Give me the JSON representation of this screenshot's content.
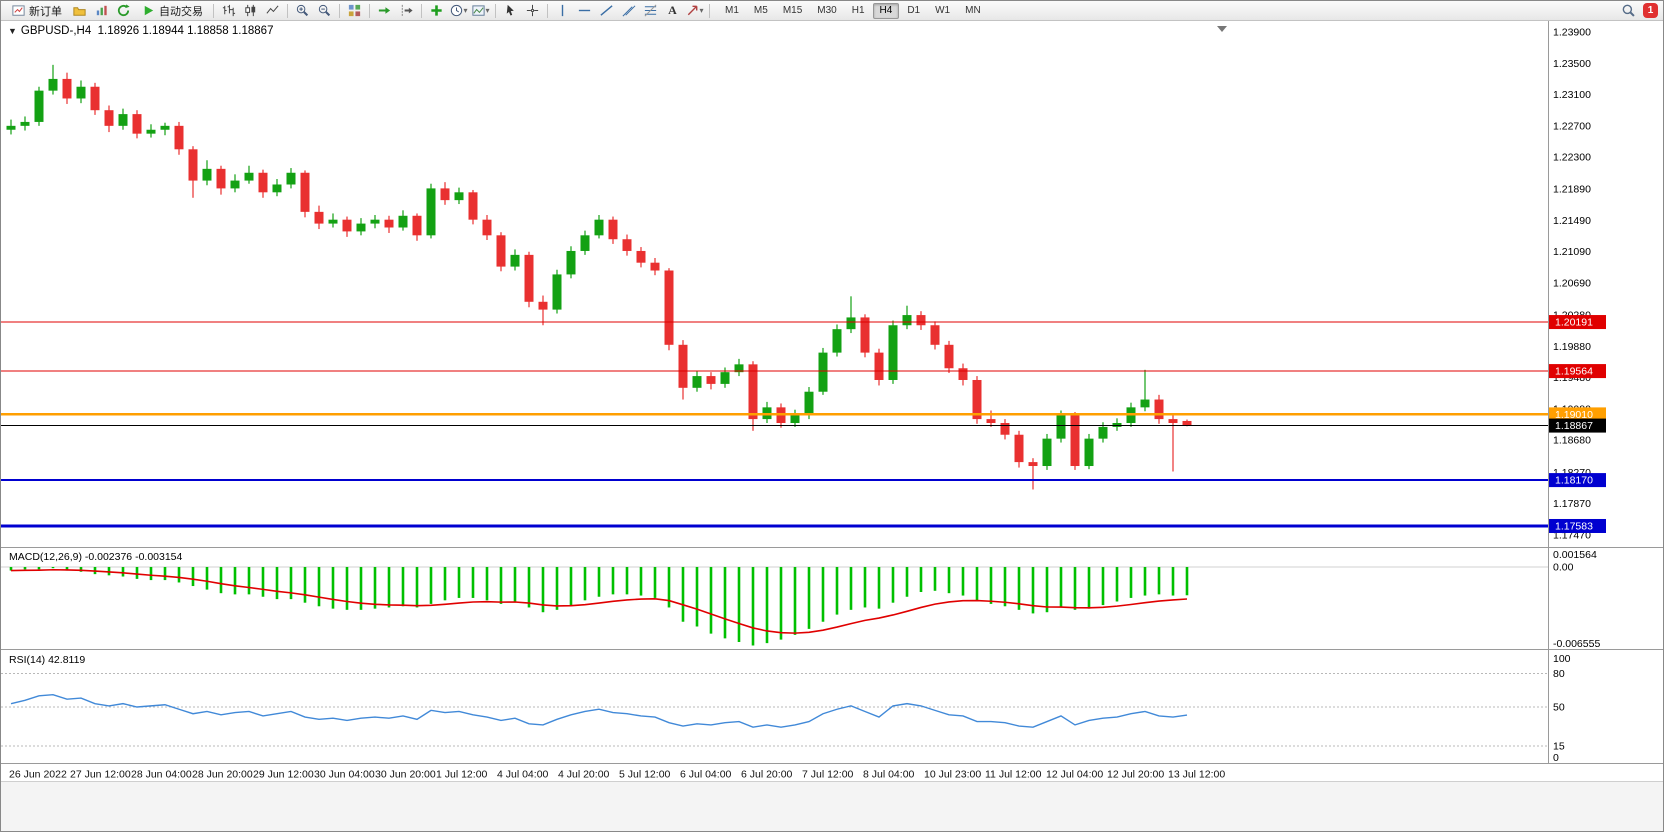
{
  "toolbar": {
    "new_order_label": "新订单",
    "auto_trading_label": "自动交易",
    "text_tool_label": "A",
    "timeframes": [
      "M1",
      "M5",
      "M15",
      "M30",
      "H1",
      "H4",
      "D1",
      "W1",
      "MN"
    ],
    "active_timeframe": "H4",
    "notification_badge": "1"
  },
  "chart": {
    "title_text": "GBPUSD-,H4  1.18926 1.18944 1.18858 1.18867",
    "price_axis": [
      "1.23900",
      "1.23500",
      "1.23100",
      "1.22700",
      "1.22300",
      "1.21890",
      "1.21490",
      "1.21090",
      "1.20690",
      "1.20280",
      "1.19880",
      "1.19480",
      "1.19080",
      "1.18680",
      "1.18270",
      "1.17870",
      "1.17470"
    ],
    "time_axis": [
      "26 Jun 2022",
      "27 Jun 12:00",
      "28 Jun 04:00",
      "28 Jun 20:00",
      "29 Jun 12:00",
      "30 Jun 04:00",
      "30 Jun 20:00",
      "1 Jul 12:00",
      "4 Jul 04:00",
      "4 Jul 20:00",
      "5 Jul 12:00",
      "6 Jul 04:00",
      "6 Jul 20:00",
      "7 Jul 12:00",
      "8 Jul 04:00",
      "10 Jul 23:00",
      "11 Jul 12:00",
      "12 Jul 04:00",
      "12 Jul 20:00",
      "13 Jul 12:00"
    ],
    "hlines": [
      {
        "label": "1.20191",
        "value": 1.20191,
        "color": "#E00000",
        "width": 1.3
      },
      {
        "label": "1.19564",
        "value": 1.19564,
        "color": "#E00000",
        "width": 1.3
      },
      {
        "label": "1.19010",
        "value": 1.1901,
        "color": "#FF9F00",
        "width": 2.4
      },
      {
        "label": "1.18867",
        "value": 1.18867,
        "color": "#000000",
        "width": 1.2
      },
      {
        "label": "1.18170",
        "value": 1.1817,
        "color": "#0000D0",
        "width": 1.8
      },
      {
        "label": "1.17583",
        "value": 1.17583,
        "color": "#0000D0",
        "width": 3
      }
    ],
    "colors": {
      "bull": "#13A113",
      "bear": "#E93030",
      "axis_text": "#000000",
      "background": "#FFFFFF"
    }
  },
  "macd": {
    "label": "MACD(12,26,9) -0.002376 -0.003154",
    "axis": [
      "0.001564",
      "0.00",
      "-0.006555"
    ],
    "hist_color": "#00C000",
    "line_color": "#E00000"
  },
  "rsi": {
    "label": "RSI(14) 42.8119",
    "axis": [
      "100",
      "80",
      "50",
      "15",
      "0"
    ],
    "levels": [
      80,
      50,
      15
    ],
    "line_color": "#4189D8"
  },
  "chart_data": {
    "type": "candlestick",
    "symbol": "GBPUSD-",
    "period": "H4",
    "last_ohlc": {
      "open": "1.18926",
      "high": "1.18944",
      "low": "1.18858",
      "close": "1.18867"
    },
    "ohlc": [
      [
        1.2265,
        1.2278,
        1.2259,
        1.227
      ],
      [
        1.227,
        1.2282,
        1.2264,
        1.2275
      ],
      [
        1.2275,
        1.232,
        1.227,
        1.2315
      ],
      [
        1.2315,
        1.2348,
        1.231,
        1.233
      ],
      [
        1.233,
        1.2338,
        1.2298,
        1.2305
      ],
      [
        1.2305,
        1.2328,
        1.2299,
        1.232
      ],
      [
        1.232,
        1.2325,
        1.2284,
        1.229
      ],
      [
        1.229,
        1.2296,
        1.2262,
        1.227
      ],
      [
        1.227,
        1.2292,
        1.2265,
        1.2285
      ],
      [
        1.2285,
        1.229,
        1.2254,
        1.226
      ],
      [
        1.226,
        1.2272,
        1.2255,
        1.2265
      ],
      [
        1.2265,
        1.2274,
        1.2258,
        1.227
      ],
      [
        1.227,
        1.2275,
        1.2233,
        1.224
      ],
      [
        1.224,
        1.2244,
        1.2178,
        1.22
      ],
      [
        1.22,
        1.2226,
        1.2194,
        1.2215
      ],
      [
        1.2215,
        1.2219,
        1.2182,
        1.219
      ],
      [
        1.219,
        1.2208,
        1.2185,
        1.22
      ],
      [
        1.22,
        1.2219,
        1.2196,
        1.221
      ],
      [
        1.221,
        1.2214,
        1.2178,
        1.2185
      ],
      [
        1.2185,
        1.2202,
        1.218,
        1.2195
      ],
      [
        1.2195,
        1.2216,
        1.219,
        1.221
      ],
      [
        1.221,
        1.2213,
        1.2153,
        1.216
      ],
      [
        1.216,
        1.2168,
        1.2138,
        1.2145
      ],
      [
        1.2145,
        1.2158,
        1.214,
        1.215
      ],
      [
        1.215,
        1.2154,
        1.2128,
        1.2135
      ],
      [
        1.2135,
        1.2152,
        1.213,
        1.2145
      ],
      [
        1.2145,
        1.2156,
        1.2139,
        1.215
      ],
      [
        1.215,
        1.2155,
        1.2133,
        1.214
      ],
      [
        1.214,
        1.2162,
        1.2136,
        1.2155
      ],
      [
        1.2155,
        1.2158,
        1.2123,
        1.213
      ],
      [
        1.213,
        1.2196,
        1.2126,
        1.219
      ],
      [
        1.219,
        1.2198,
        1.2169,
        1.2175
      ],
      [
        1.2175,
        1.2191,
        1.217,
        1.2185
      ],
      [
        1.2185,
        1.2188,
        1.2144,
        1.215
      ],
      [
        1.215,
        1.2156,
        1.2124,
        1.213
      ],
      [
        1.213,
        1.2134,
        1.2084,
        1.209
      ],
      [
        1.209,
        1.2112,
        1.2085,
        1.2105
      ],
      [
        1.2105,
        1.2109,
        1.2038,
        1.2045
      ],
      [
        1.2045,
        1.2053,
        1.2015,
        1.2035
      ],
      [
        1.2035,
        1.2086,
        1.203,
        1.208
      ],
      [
        1.208,
        1.2116,
        1.2075,
        1.211
      ],
      [
        1.211,
        1.2136,
        1.2105,
        1.213
      ],
      [
        1.213,
        1.2156,
        1.2126,
        1.215
      ],
      [
        1.215,
        1.2154,
        1.2119,
        1.2125
      ],
      [
        1.2125,
        1.2131,
        1.2104,
        1.211
      ],
      [
        1.211,
        1.2115,
        1.2089,
        1.2095
      ],
      [
        1.2095,
        1.2101,
        1.2079,
        1.2085
      ],
      [
        1.2085,
        1.2088,
        1.1983,
        1.199
      ],
      [
        1.199,
        1.1996,
        1.192,
        1.1935
      ],
      [
        1.1935,
        1.1956,
        1.193,
        1.195
      ],
      [
        1.195,
        1.1955,
        1.1933,
        1.194
      ],
      [
        1.194,
        1.1961,
        1.1935,
        1.1955
      ],
      [
        1.1955,
        1.1972,
        1.195,
        1.1965
      ],
      [
        1.1965,
        1.1969,
        1.188,
        1.1895
      ],
      [
        1.1895,
        1.1917,
        1.189,
        1.191
      ],
      [
        1.191,
        1.1915,
        1.1884,
        1.189
      ],
      [
        1.189,
        1.1907,
        1.1885,
        1.19
      ],
      [
        1.19,
        1.1936,
        1.1895,
        1.193
      ],
      [
        1.193,
        1.1986,
        1.1926,
        1.198
      ],
      [
        1.198,
        1.2016,
        1.1975,
        1.201
      ],
      [
        1.201,
        1.2052,
        1.2005,
        1.2025
      ],
      [
        1.2025,
        1.2029,
        1.1974,
        1.198
      ],
      [
        1.198,
        1.1985,
        1.1938,
        1.1945
      ],
      [
        1.1945,
        1.2021,
        1.194,
        1.2015
      ],
      [
        1.2015,
        1.204,
        1.201,
        1.2028
      ],
      [
        1.2028,
        1.2033,
        1.2009,
        1.2015
      ],
      [
        1.2015,
        1.202,
        1.1984,
        1.199
      ],
      [
        1.199,
        1.1995,
        1.1954,
        1.196
      ],
      [
        1.196,
        1.1966,
        1.1938,
        1.1945
      ],
      [
        1.1945,
        1.195,
        1.1889,
        1.1895
      ],
      [
        1.1895,
        1.1906,
        1.1885,
        1.189
      ],
      [
        1.189,
        1.1895,
        1.1869,
        1.1875
      ],
      [
        1.1875,
        1.188,
        1.1833,
        1.184
      ],
      [
        1.184,
        1.1845,
        1.1805,
        1.1835
      ],
      [
        1.1835,
        1.1876,
        1.183,
        1.187
      ],
      [
        1.187,
        1.1906,
        1.1865,
        1.19
      ],
      [
        1.19,
        1.1904,
        1.183,
        1.1835
      ],
      [
        1.1835,
        1.1876,
        1.1831,
        1.187
      ],
      [
        1.187,
        1.1891,
        1.1865,
        1.1885
      ],
      [
        1.1885,
        1.1896,
        1.188,
        1.189
      ],
      [
        1.189,
        1.1916,
        1.1885,
        1.191
      ],
      [
        1.191,
        1.1958,
        1.1905,
        1.192
      ],
      [
        1.192,
        1.1926,
        1.1889,
        1.1895
      ],
      [
        1.1895,
        1.1901,
        1.1828,
        1.189
      ],
      [
        1.18926,
        1.18944,
        1.18858,
        1.18867
      ]
    ],
    "macd_histogram": [
      -0.0003,
      -0.0002,
      -0.0002,
      -0.0001,
      -0.0003,
      -0.0004,
      -0.0006,
      -0.0007,
      -0.0008,
      -0.001,
      -0.0011,
      -0.0011,
      -0.0013,
      -0.0016,
      -0.0019,
      -0.0022,
      -0.0023,
      -0.0023,
      -0.0025,
      -0.0027,
      -0.0027,
      -0.003,
      -0.0033,
      -0.0035,
      -0.0036,
      -0.0036,
      -0.0035,
      -0.0034,
      -0.0033,
      -0.0034,
      -0.0031,
      -0.0028,
      -0.0026,
      -0.0026,
      -0.0028,
      -0.0031,
      -0.0029,
      -0.0034,
      -0.0038,
      -0.0036,
      -0.0032,
      -0.0028,
      -0.0025,
      -0.0023,
      -0.0023,
      -0.0024,
      -0.0026,
      -0.0034,
      -0.0046,
      -0.005,
      -0.0056,
      -0.006,
      -0.0063,
      -0.0066,
      -0.0064,
      -0.0061,
      -0.0057,
      -0.0052,
      -0.0046,
      -0.004,
      -0.0036,
      -0.0034,
      -0.0035,
      -0.003,
      -0.0025,
      -0.0021,
      -0.002,
      -0.0022,
      -0.0024,
      -0.0028,
      -0.0031,
      -0.0033,
      -0.0036,
      -0.0039,
      -0.0038,
      -0.0034,
      -0.0036,
      -0.0035,
      -0.0032,
      -0.0029,
      -0.0026,
      -0.0024,
      -0.0023,
      -0.0024,
      -0.002376
    ],
    "macd_signal_period": 9,
    "rsi_values": [
      53,
      56,
      60,
      61,
      57,
      58,
      53,
      51,
      53,
      50,
      51,
      52,
      48,
      44,
      46,
      43,
      45,
      46,
      42,
      44,
      46,
      41,
      39,
      40,
      38,
      40,
      41,
      40,
      42,
      39,
      47,
      45,
      46,
      43,
      41,
      38,
      40,
      35,
      34,
      39,
      43,
      46,
      48,
      45,
      44,
      42,
      41,
      36,
      33,
      35,
      34,
      36,
      37,
      32,
      34,
      32,
      34,
      37,
      44,
      48,
      51,
      46,
      41,
      51,
      53,
      51,
      47,
      43,
      42,
      37,
      37,
      36,
      33,
      32,
      37,
      42,
      34,
      38,
      40,
      41,
      44,
      46,
      42,
      41,
      42.8
    ]
  }
}
